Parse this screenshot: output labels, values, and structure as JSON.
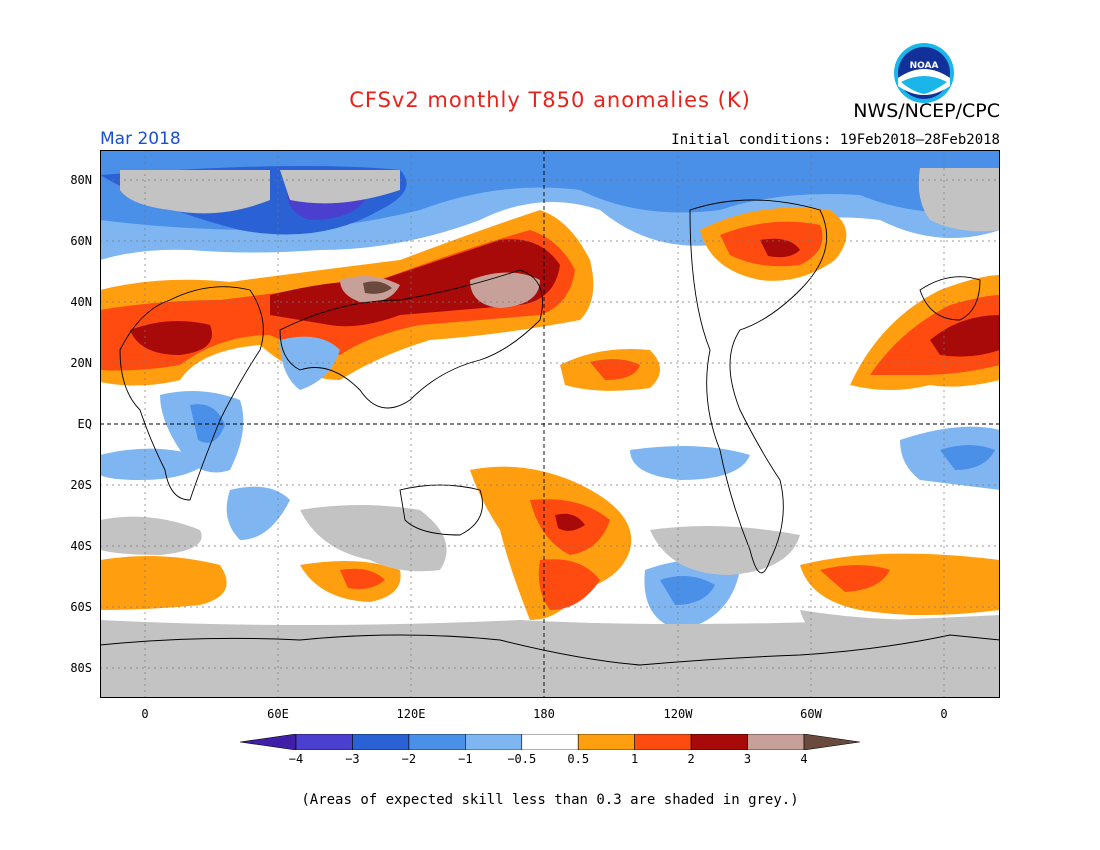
{
  "title": "CFSv2 monthly T850 anomalies (K)",
  "agency": "NWS/NCEP/CPC",
  "logo_text": "NOAA",
  "month": "Mar 2018",
  "initial_conditions": "Initial conditions: 19Feb2018–28Feb2018",
  "lat_labels": [
    "80N",
    "60N",
    "40N",
    "20N",
    "EQ",
    "20S",
    "40S",
    "60S",
    "80S"
  ],
  "lon_labels": [
    "0",
    "60E",
    "120E",
    "180",
    "120W",
    "60W",
    "0"
  ],
  "colorbar": {
    "labels": [
      "−4",
      "−3",
      "−2",
      "−1",
      "−0.5",
      "0.5",
      "1",
      "2",
      "3",
      "4"
    ],
    "colors": [
      "#3f1fa8",
      "#4a3fcf",
      "#2a62d6",
      "#4a8fe8",
      "#7fb6f2",
      "#ffffff",
      "#ff9f10",
      "#ff4a10",
      "#a80a0a",
      "#c8a09a",
      "#6a4a3c"
    ]
  },
  "colors": {
    "skill_grey": "#c3c3c3",
    "title_red": "#e8221a",
    "month_blue": "#1a4fd6"
  },
  "footnote": "(Areas of expected skill less than 0.3 are shaded in grey.)"
}
